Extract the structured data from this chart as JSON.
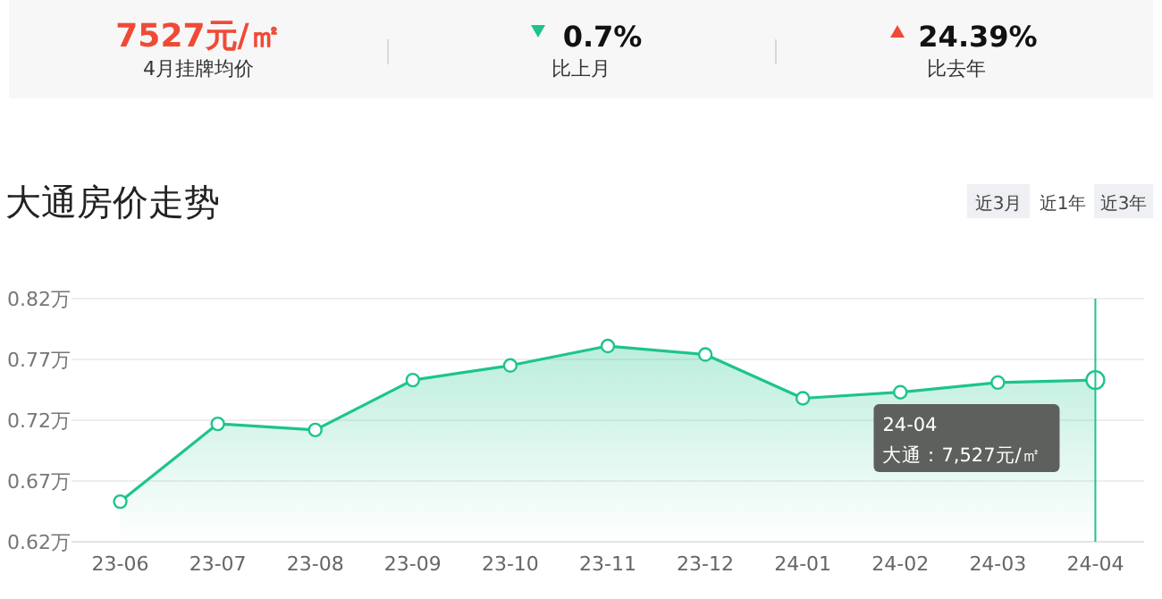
{
  "chart_data": {
    "type": "area",
    "title": "大通房价走势",
    "categories": [
      "23-06",
      "23-07",
      "23-08",
      "23-09",
      "23-10",
      "23-11",
      "23-12",
      "24-01",
      "24-02",
      "24-03",
      "24-04"
    ],
    "series": [
      {
        "color": "#1dc48d",
        "values": [
          0.653,
          0.717,
          0.712,
          0.753,
          0.765,
          0.781,
          0.774,
          0.738,
          0.743,
          0.751,
          0.753
        ]
      }
    ],
    "ylim": [
      0.62,
      0.82
    ],
    "yticks": [
      {
        "value": 0.62,
        "label": "0.62万"
      },
      {
        "value": 0.67,
        "label": "0.67万"
      },
      {
        "value": 0.72,
        "label": "0.72万"
      },
      {
        "value": 0.77,
        "label": "0.77万"
      },
      {
        "value": 0.82,
        "label": "0.82万"
      }
    ],
    "grid": "y",
    "marker": "circle",
    "ref_lines": [
      {
        "axis": "x",
        "value": "24-04",
        "color": "#1dc48d"
      }
    ],
    "annotations": [
      "7527元/㎡",
      "4月挂牌均价",
      "0.7%",
      "比上月",
      "24.39%",
      "比去年",
      "近3月",
      "近1年",
      "近3年",
      "24-04",
      "大通：7,527元/㎡"
    ]
  }
}
